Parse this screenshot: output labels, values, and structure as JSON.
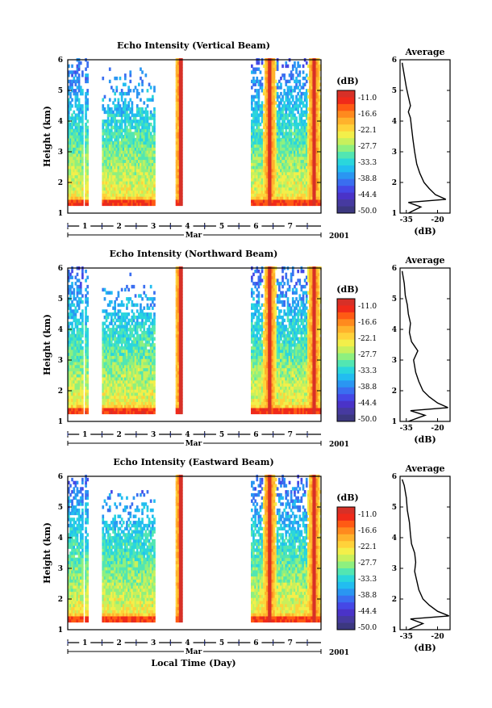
{
  "chart_data": {
    "type": "heatmap",
    "xlabel": "Local Time (Day)",
    "month_label": "Mar",
    "year_label": "2001",
    "x_ticks": [
      "1",
      "2",
      "3",
      "4",
      "5",
      "6",
      "7"
    ],
    "xlim": [
      0.5,
      7.9
    ],
    "ylabel": "Height (km)",
    "y_ticks": [
      "1",
      "2",
      "3",
      "4",
      "5",
      "6"
    ],
    "ylim": [
      1,
      6
    ],
    "colorbar": {
      "unit": "(dB)",
      "labels": [
        "-11.0",
        "-16.6",
        "-22.1",
        "-27.7",
        "-33.3",
        "-38.8",
        "-44.4",
        "-50.0"
      ],
      "colors": [
        "#d73027",
        "#f02a1a",
        "#ff5a14",
        "#ff8a1e",
        "#ffb22c",
        "#ffd23a",
        "#f3ef4a",
        "#c8f05c",
        "#8ef07f",
        "#52e6b2",
        "#2ad6dc",
        "#22bdf0",
        "#2a96f2",
        "#3a6ef0",
        "#4548e6",
        "#4a33c8",
        "#463aa0",
        "#3c3880"
      ]
    },
    "data_periods": [
      [
        0.5,
        0.95
      ],
      [
        1.0,
        1.1
      ],
      [
        1.5,
        3.05
      ],
      [
        3.65,
        3.85
      ],
      [
        5.85,
        7.9
      ]
    ],
    "strong_echo_periods": [
      [
        3.75,
        3.85
      ],
      [
        6.3,
        6.5
      ],
      [
        7.65,
        7.75
      ]
    ],
    "panels": [
      {
        "title": "Echo Intensity (Vertical Beam)",
        "average": {
          "title": "Average",
          "xlabel": "(dB)",
          "x_ticks": [
            "-35",
            "-20"
          ],
          "xlim": [
            -38,
            -14
          ],
          "height_km": [
            1.0,
            1.2,
            1.35,
            1.45,
            1.6,
            1.8,
            2.0,
            2.3,
            2.6,
            3.0,
            3.4,
            3.8,
            4.1,
            4.3,
            4.5,
            4.8,
            5.1,
            5.5,
            5.9
          ],
          "value_db": [
            -34,
            -28,
            -34,
            -16,
            -21,
            -24,
            -26.5,
            -28.5,
            -30,
            -31,
            -31.8,
            -32.5,
            -33,
            -34,
            -33,
            -34,
            -35,
            -36,
            -37
          ]
        }
      },
      {
        "title": "Echo Intensity (Northward Beam)",
        "average": {
          "title": "Average",
          "xlabel": "(dB)",
          "x_ticks": [
            "-35",
            "-20"
          ],
          "xlim": [
            -38,
            -14
          ],
          "height_km": [
            1.0,
            1.2,
            1.35,
            1.45,
            1.6,
            1.8,
            2.0,
            2.3,
            2.6,
            3.0,
            3.3,
            3.6,
            3.9,
            4.2,
            4.5,
            4.8,
            5.1,
            5.5,
            5.9
          ],
          "value_db": [
            -34,
            -26,
            -33,
            -15,
            -20,
            -24,
            -27,
            -29,
            -30.5,
            -31.5,
            -29.5,
            -32.5,
            -33.5,
            -33,
            -34,
            -34.5,
            -35.5,
            -36,
            -37
          ]
        }
      },
      {
        "title": "Echo Intensity (Eastward Beam)",
        "average": {
          "title": "Average",
          "xlabel": "(dB)",
          "x_ticks": [
            "-35",
            "-20"
          ],
          "xlim": [
            -38,
            -14
          ],
          "height_km": [
            1.0,
            1.2,
            1.35,
            1.45,
            1.6,
            1.8,
            2.0,
            2.3,
            2.6,
            2.9,
            3.2,
            3.5,
            3.8,
            4.1,
            4.5,
            4.9,
            5.3,
            5.7,
            5.9
          ],
          "value_db": [
            -34,
            -27,
            -33,
            -14.5,
            -20,
            -24,
            -27,
            -29,
            -30,
            -31,
            -30.5,
            -31,
            -32.5,
            -33,
            -33.5,
            -34.5,
            -35,
            -36,
            -37
          ]
        }
      }
    ]
  }
}
